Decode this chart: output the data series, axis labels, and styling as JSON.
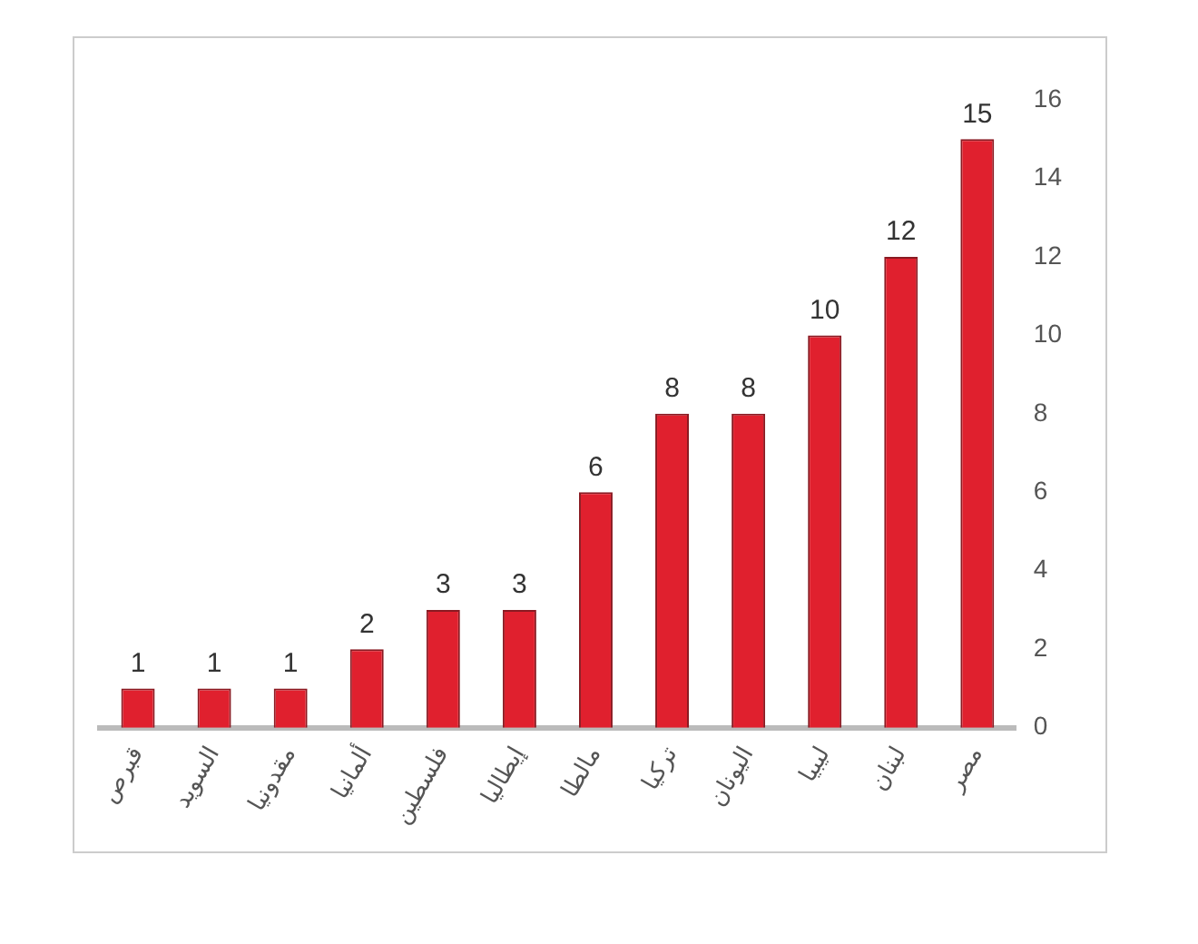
{
  "chart_data": {
    "type": "bar",
    "categories": [
      "قبرص",
      "السويد",
      "مقدونيا",
      "ألمانيا",
      "فلسطين",
      "إيطاليا",
      "مالطا",
      "تركيا",
      "اليونان",
      "ليبيا",
      "لبنان",
      "مصر"
    ],
    "values": [
      1,
      1,
      1,
      2,
      3,
      3,
      6,
      8,
      8,
      10,
      12,
      15
    ],
    "color": "#e0202e",
    "ylim": [
      0,
      16
    ],
    "yticks": [
      0,
      2,
      4,
      6,
      8,
      10,
      12,
      14,
      16
    ],
    "grid": false,
    "legend": false,
    "data_labels": true
  }
}
